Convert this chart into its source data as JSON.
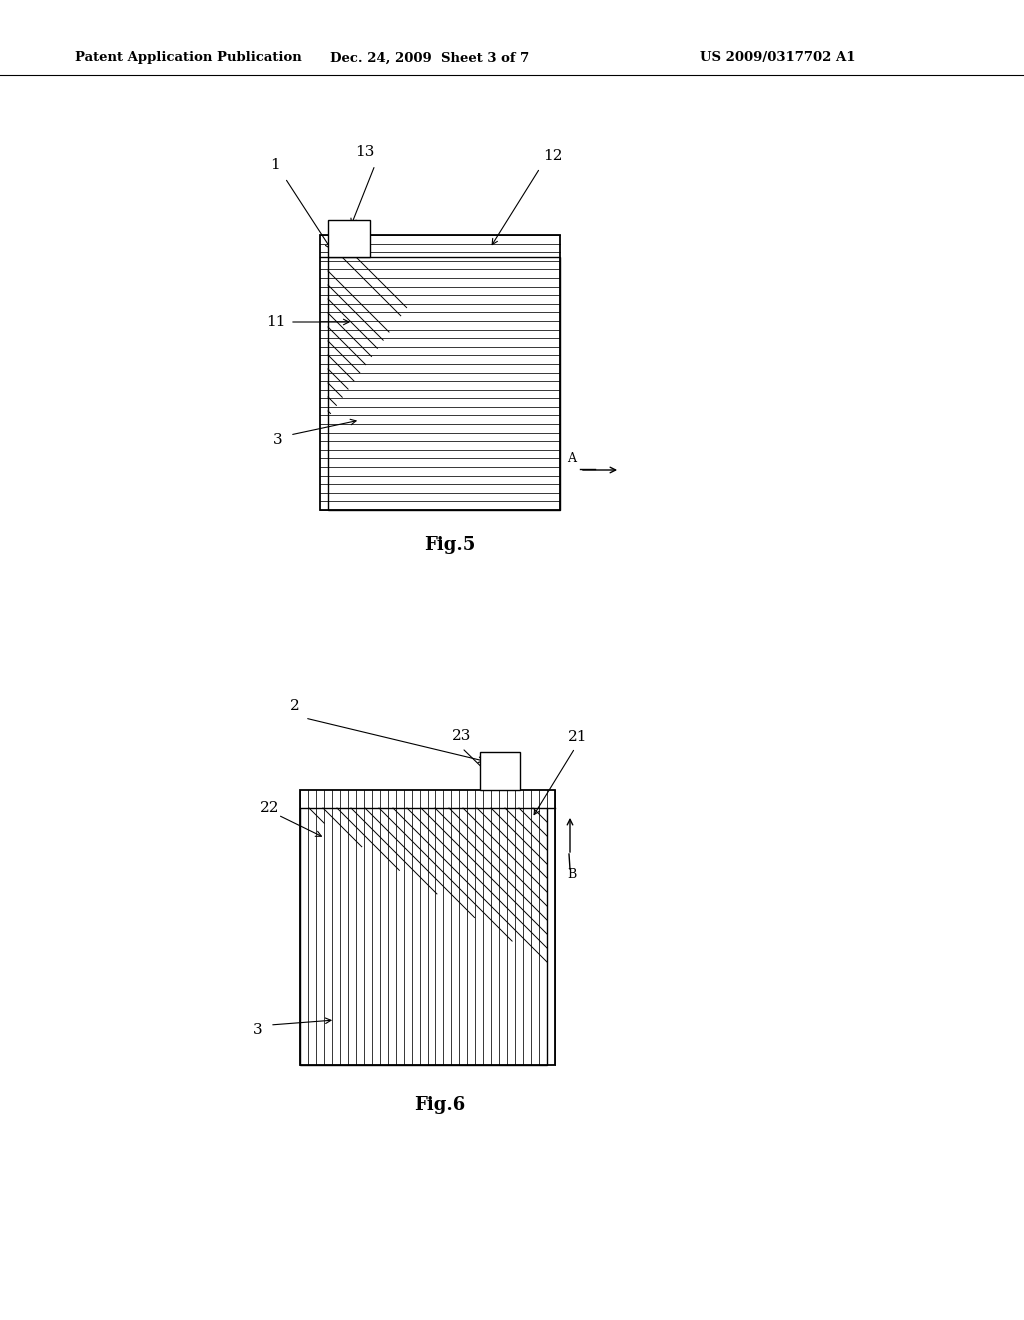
{
  "bg_color": "#ffffff",
  "header_left": "Patent Application Publication",
  "header_mid": "Dec. 24, 2009  Sheet 3 of 7",
  "header_right": "US 2009/0317702 A1",
  "fig5_label": "Fig.5",
  "fig6_label": "Fig.6",
  "line_color": "#000000"
}
